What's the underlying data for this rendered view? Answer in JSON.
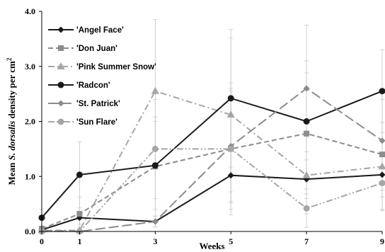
{
  "chart_data": {
    "type": "line",
    "title": "",
    "xlabel": "Weeks",
    "ylabel": {
      "prefix": "Mean ",
      "italic": "S. dorsalis",
      "suffix": " density  per cm",
      "superscript": "2"
    },
    "x": [
      0,
      1,
      3,
      5,
      7,
      9
    ],
    "x_tick_labels": [
      "0",
      "1",
      "3",
      "5",
      "7",
      "9"
    ],
    "y_tick_labels": [
      "0.0",
      "1.0",
      "2.0",
      "3.0",
      "4.0"
    ],
    "ylim": [
      0,
      4
    ],
    "grid": false,
    "legend_position": "top-left",
    "series": [
      {
        "name": "'Angel Face'",
        "values": [
          0.03,
          0.25,
          0.18,
          1.02,
          0.95,
          1.03
        ],
        "color": "#1a1a1a",
        "dash": "solid",
        "marker": "diamond",
        "err": [
          0.05,
          0.12,
          0.1,
          0.5,
          0.35,
          0.4
        ]
      },
      {
        "name": "'Don Juan'",
        "values": [
          0.05,
          0.32,
          1.18,
          1.5,
          1.78,
          1.4
        ],
        "color": "#8c8c8c",
        "dash": "dashed",
        "marker": "square",
        "err": [
          0.05,
          0.3,
          0.9,
          1.2,
          1.1,
          1.0
        ]
      },
      {
        "name": "'Pink Summer Snow'",
        "values": [
          0.02,
          0.02,
          2.55,
          2.12,
          1.02,
          1.18
        ],
        "color": "#a6a6a6",
        "dash": "dashdot",
        "marker": "triangle",
        "err": [
          0.03,
          0.05,
          1.3,
          1.4,
          0.7,
          0.8
        ]
      },
      {
        "name": "'Radcon'",
        "values": [
          0.25,
          1.03,
          1.2,
          2.42,
          2.0,
          2.55
        ],
        "color": "#1a1a1a",
        "dash": "solid",
        "marker": "circle",
        "err": [
          0.15,
          0.6,
          0.8,
          1.25,
          1.1,
          0.75
        ]
      },
      {
        "name": "'St. Patrick'",
        "values": [
          0.02,
          0.0,
          0.18,
          1.55,
          2.6,
          1.65
        ],
        "color": "#8c8c8c",
        "dash": "longdash",
        "marker": "diamond",
        "err": [
          0.03,
          0.04,
          0.1,
          1.0,
          1.15,
          0.9
        ]
      },
      {
        "name": "'Sun Flare'",
        "values": [
          0.0,
          0.0,
          1.5,
          1.5,
          0.42,
          0.88
        ],
        "color": "#a6a6a6",
        "dash": "dashdotdot",
        "marker": "circle",
        "err": [
          0.03,
          0.05,
          0.9,
          1.1,
          0.35,
          0.5
        ]
      }
    ]
  }
}
